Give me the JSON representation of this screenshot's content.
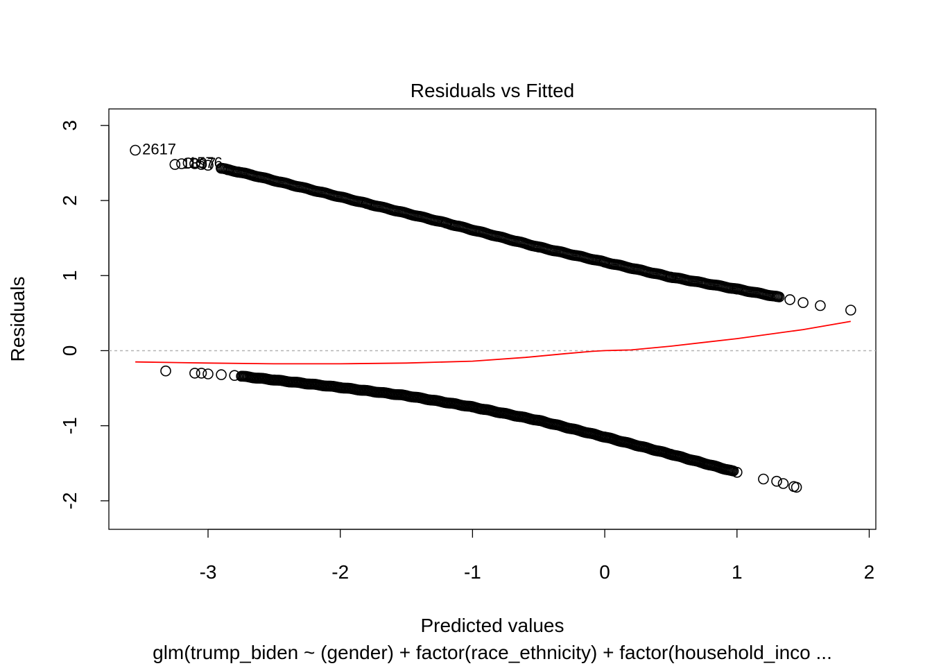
{
  "chart_data": {
    "type": "scatter",
    "title": "Residuals vs Fitted",
    "xlabel": "Predicted values",
    "ylabel": "Residuals",
    "subtitle": "glm(trump_biden ~ (gender) + factor(race_ethnicity) + factor(household_inco ...",
    "xlim": [
      -3.75,
      2.05
    ],
    "ylim": [
      -2.38,
      3.22
    ],
    "x_ticks": [
      -3,
      -2,
      -1,
      0,
      1,
      2
    ],
    "x_tick_labels": [
      "-3",
      "-2",
      "-1",
      "0",
      "1",
      "2"
    ],
    "y_ticks": [
      -2,
      -1,
      0,
      1,
      2,
      3
    ],
    "y_tick_labels": [
      "-2",
      "-1",
      "0",
      "1",
      "2",
      "3"
    ],
    "reference_line": {
      "y": 0,
      "style": "dotted",
      "color": "#b3b3b3"
    },
    "smoother": {
      "color": "#ff0000",
      "x": [
        -3.55,
        -3.0,
        -2.5,
        -2.0,
        -1.5,
        -1.0,
        -0.6,
        -0.3,
        -0.1,
        0.0,
        0.2,
        0.5,
        1.0,
        1.5,
        1.86
      ],
      "y": [
        -0.15,
        -0.165,
        -0.175,
        -0.175,
        -0.165,
        -0.14,
        -0.09,
        -0.04,
        -0.01,
        0.0,
        0.01,
        0.06,
        0.16,
        0.28,
        0.39
      ]
    },
    "series": [
      {
        "name": "upper branch (y = 1)",
        "x_range": [
          -3.55,
          1.86
        ],
        "points": [
          [
            -3.55,
            2.67
          ],
          [
            -3.25,
            2.48
          ],
          [
            -3.2,
            2.49
          ],
          [
            -3.15,
            2.5
          ],
          [
            -3.1,
            2.49
          ],
          [
            -3.05,
            2.48
          ],
          [
            -3.0,
            2.47
          ],
          [
            -2.9,
            2.43
          ],
          [
            -2.85,
            2.41
          ],
          [
            -2.77,
            2.38
          ],
          [
            -2.67,
            2.34
          ],
          [
            -1.8,
            1.96
          ],
          [
            -1.2,
            1.7
          ],
          [
            -0.5,
            1.38
          ],
          [
            0.0,
            1.18
          ],
          [
            0.5,
            0.98
          ],
          [
            1.0,
            0.82
          ],
          [
            1.3,
            0.72
          ],
          [
            1.4,
            0.68
          ],
          [
            1.5,
            0.64
          ],
          [
            1.63,
            0.6
          ],
          [
            1.86,
            0.54
          ]
        ]
      },
      {
        "name": "lower branch (y = 0)",
        "x_range": [
          -3.32,
          1.45
        ],
        "points": [
          [
            -3.32,
            -0.27
          ],
          [
            -3.1,
            -0.3
          ],
          [
            -3.05,
            -0.3
          ],
          [
            -3.0,
            -0.31
          ],
          [
            -2.9,
            -0.32
          ],
          [
            -2.8,
            -0.33
          ],
          [
            -2.5,
            -0.39
          ],
          [
            -2.0,
            -0.49
          ],
          [
            -1.5,
            -0.6
          ],
          [
            -1.0,
            -0.75
          ],
          [
            -0.5,
            -0.93
          ],
          [
            0.0,
            -1.15
          ],
          [
            0.5,
            -1.38
          ],
          [
            1.0,
            -1.62
          ],
          [
            1.2,
            -1.71
          ],
          [
            1.3,
            -1.74
          ],
          [
            1.35,
            -1.77
          ],
          [
            1.43,
            -1.81
          ],
          [
            1.45,
            -1.82
          ]
        ]
      }
    ],
    "annotations": [
      {
        "text": "2617",
        "x": -3.55,
        "y": 2.67
      },
      {
        "text": "1897",
        "x": -3.25,
        "y": 2.48
      },
      {
        "text": "1576",
        "x": -3.2,
        "y": 2.49
      }
    ]
  }
}
